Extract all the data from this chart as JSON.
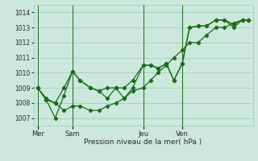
{
  "bg_color": "#cce8dc",
  "grid_color": "#9fcfba",
  "line_color": "#1a6b1a",
  "xlabel": "Pression niveau de la mer( hPa )",
  "ylim": [
    1006.5,
    1014.5
  ],
  "yticks": [
    1007,
    1008,
    1009,
    1010,
    1011,
    1012,
    1013,
    1014
  ],
  "day_labels": [
    "Mer",
    "Sam",
    "Jeu",
    "Ven"
  ],
  "day_positions": [
    0.0,
    0.165,
    0.5,
    0.685
  ],
  "vline_positions": [
    0.0,
    0.165,
    0.5,
    0.685
  ],
  "series1_x": [
    0.0,
    0.04,
    0.083,
    0.124,
    0.165,
    0.2,
    0.25,
    0.29,
    0.33,
    0.37,
    0.41,
    0.45,
    0.5,
    0.535,
    0.57,
    0.61,
    0.645,
    0.685,
    0.72,
    0.76,
    0.8,
    0.845,
    0.885,
    0.93,
    0.97,
    1.0
  ],
  "series1_y": [
    1009.0,
    1008.3,
    1008.0,
    1009.0,
    1010.1,
    1009.5,
    1009.0,
    1008.8,
    1008.3,
    1009.0,
    1009.0,
    1009.5,
    1010.5,
    1010.5,
    1010.3,
    1010.6,
    1009.5,
    1010.6,
    1013.0,
    1013.1,
    1013.1,
    1013.5,
    1013.5,
    1013.2,
    1013.5,
    1013.5
  ],
  "series2_x": [
    0.0,
    0.04,
    0.083,
    0.124,
    0.165,
    0.2,
    0.25,
    0.29,
    0.33,
    0.37,
    0.41,
    0.45,
    0.5,
    0.535,
    0.57,
    0.61,
    0.645,
    0.685,
    0.72,
    0.76,
    0.8,
    0.845,
    0.885,
    0.93,
    0.97,
    1.0
  ],
  "series2_y": [
    1009.0,
    1008.2,
    1008.0,
    1007.5,
    1007.8,
    1007.8,
    1007.5,
    1007.5,
    1007.8,
    1008.0,
    1008.3,
    1008.8,
    1009.0,
    1009.5,
    1010.0,
    1010.5,
    1011.0,
    1011.5,
    1012.0,
    1012.0,
    1012.5,
    1013.0,
    1013.0,
    1013.3,
    1013.5,
    1013.5
  ],
  "series3_x": [
    0.0,
    0.04,
    0.083,
    0.124,
    0.165,
    0.2,
    0.25,
    0.29,
    0.33,
    0.37,
    0.41,
    0.45,
    0.5,
    0.535,
    0.57,
    0.61,
    0.645,
    0.685,
    0.72,
    0.76,
    0.8,
    0.845,
    0.885,
    0.93,
    0.97,
    1.0
  ],
  "series3_y": [
    1009.0,
    1008.2,
    1007.0,
    1008.5,
    1010.1,
    1009.5,
    1009.0,
    1008.8,
    1009.0,
    1009.0,
    1008.3,
    1009.0,
    1010.5,
    1010.5,
    1010.3,
    1010.6,
    1009.5,
    1010.6,
    1013.0,
    1013.1,
    1013.1,
    1013.5,
    1013.5,
    1013.0,
    1013.5,
    1013.5
  ]
}
